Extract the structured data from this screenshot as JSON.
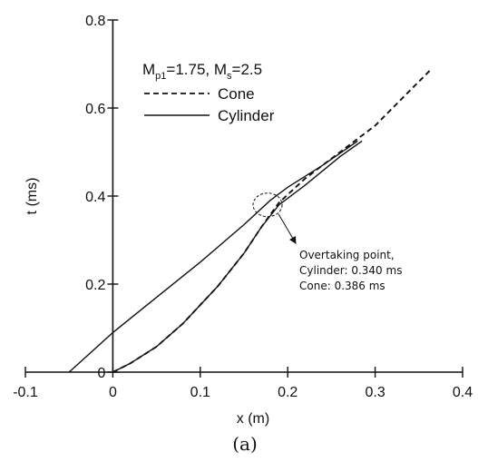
{
  "chart_data": {
    "type": "line",
    "title": "",
    "xlabel": "x (m)",
    "ylabel": "t (ms)",
    "xlim": [
      -0.1,
      0.4
    ],
    "ylim": [
      0,
      0.8
    ],
    "x_ticks": [
      "-0.1",
      "0",
      "0.1",
      "0.2",
      "0.3",
      "0.4"
    ],
    "y_ticks": [
      "0",
      "0.2",
      "0.4",
      "0.6",
      "0.8"
    ],
    "grid": false,
    "legend": {
      "placement": "top-left",
      "header_parts": [
        "M",
        "p1",
        "=1.75, M",
        "s",
        "=2.5"
      ],
      "entries": [
        "Cone",
        "Cylinder"
      ]
    },
    "series": [
      {
        "name": "Cone",
        "style": "dashed",
        "x": [
          0.0,
          0.02,
          0.05,
          0.08,
          0.12,
          0.15,
          0.17,
          0.19,
          0.22,
          0.26,
          0.3,
          0.335,
          0.365
        ],
        "y": [
          0.0,
          0.02,
          0.058,
          0.11,
          0.195,
          0.27,
          0.33,
          0.385,
          0.44,
          0.5,
          0.56,
          0.63,
          0.69
        ]
      },
      {
        "name": "Cylinder",
        "style": "solid",
        "x": [
          -0.05,
          0.0,
          0.05,
          0.1,
          0.15,
          0.18,
          0.2,
          0.24,
          0.28
        ],
        "y": [
          0.0,
          0.09,
          0.17,
          0.25,
          0.335,
          0.39,
          0.42,
          0.47,
          0.525
        ]
      },
      {
        "name": "Cylinder",
        "style": "solid",
        "x": [
          0.0,
          0.02,
          0.05,
          0.08,
          0.12,
          0.15,
          0.17,
          0.19,
          0.22,
          0.26,
          0.285
        ],
        "y": [
          0.0,
          0.02,
          0.058,
          0.11,
          0.195,
          0.27,
          0.33,
          0.38,
          0.425,
          0.49,
          0.525
        ]
      }
    ],
    "annotation": {
      "lines": [
        "Overtaking point,",
        "Cylinder: 0.340 ms",
        "Cone: 0.386 ms"
      ],
      "point": [
        0.177,
        0.38
      ]
    },
    "caption": "(a)"
  }
}
